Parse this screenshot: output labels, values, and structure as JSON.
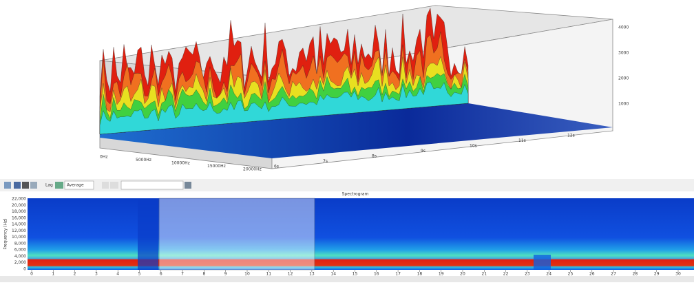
{
  "waterfall": {
    "level_labels": [
      "4000",
      "3000",
      "2000",
      "1000"
    ],
    "frequency_labels": [
      "0Hz",
      "5000Hz",
      "10000Hz",
      "15000Hz",
      "20000Hz"
    ],
    "time_labels": [
      "6s",
      "7s",
      "8s",
      "9s",
      "10s",
      "11s",
      "12s"
    ]
  },
  "toolbar": {
    "lag": "Lag",
    "mode": "Average"
  },
  "spectrogram": {
    "title": "Spectrogram",
    "y_label": "Frequency (Hz)",
    "y_labels": [
      "22,000",
      "20,000",
      "18,000",
      "16,000",
      "14,000",
      "12,000",
      "10,000",
      "8,000",
      "6,000",
      "4,000",
      "2,000",
      "0"
    ],
    "x_labels": [
      "0",
      "1",
      "2",
      "3",
      "4",
      "5",
      "6",
      "7",
      "8",
      "9",
      "10",
      "11",
      "12",
      "13",
      "14",
      "15",
      "16",
      "17",
      "18",
      "19",
      "20",
      "21",
      "22",
      "23",
      "24",
      "25",
      "26",
      "27",
      "28",
      "29",
      "30"
    ]
  }
}
